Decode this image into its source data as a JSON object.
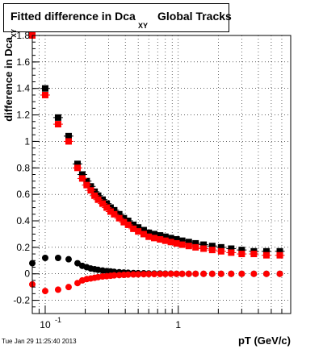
{
  "title": {
    "main": "Fitted difference in Dca",
    "subscript": "XY",
    "tail": "Global Tracks"
  },
  "timestamp": "Tue Jan 29 11:25:40 2013",
  "chart_data": {
    "type": "scatter",
    "title": "Fitted difference in Dca XY Global Tracks",
    "xlabel": "pT (GeV/c)",
    "ylabel": "difference in Dca",
    "ylabel_subscript": "XY",
    "xscale": "log",
    "xlim": [
      0.08,
      7.0
    ],
    "ylim": [
      -0.3,
      1.8
    ],
    "grid": true,
    "x_ticks": [
      {
        "value": 0.1,
        "label": "10",
        "exp": "-1"
      },
      {
        "value": 1.0,
        "label": "1",
        "exp": ""
      }
    ],
    "y_ticks": [
      -0.2,
      0,
      0.2,
      0.4,
      0.6,
      0.8,
      1,
      1.2,
      1.4,
      1.6,
      1.8
    ],
    "series": [
      {
        "color": "#000000",
        "marker": "square",
        "x": [
          0.08,
          0.1,
          0.125,
          0.15,
          0.175,
          0.19,
          0.205,
          0.22,
          0.235,
          0.25,
          0.27,
          0.29,
          0.31,
          0.33,
          0.36,
          0.39,
          0.42,
          0.46,
          0.5,
          0.55,
          0.6,
          0.66,
          0.73,
          0.8,
          0.88,
          0.97,
          1.07,
          1.2,
          1.35,
          1.55,
          1.8,
          2.1,
          2.5,
          3.0,
          3.7,
          4.6,
          5.8
        ],
        "y": [
          1.83,
          1.4,
          1.18,
          1.04,
          0.83,
          0.75,
          0.7,
          0.66,
          0.62,
          0.59,
          0.56,
          0.53,
          0.5,
          0.48,
          0.45,
          0.42,
          0.4,
          0.37,
          0.35,
          0.33,
          0.31,
          0.3,
          0.29,
          0.28,
          0.27,
          0.26,
          0.25,
          0.24,
          0.23,
          0.22,
          0.21,
          0.2,
          0.19,
          0.18,
          0.17,
          0.17,
          0.17
        ]
      },
      {
        "color": "#ff0000",
        "marker": "square",
        "x": [
          0.08,
          0.1,
          0.125,
          0.15,
          0.175,
          0.19,
          0.205,
          0.22,
          0.235,
          0.25,
          0.27,
          0.29,
          0.31,
          0.33,
          0.36,
          0.39,
          0.42,
          0.46,
          0.5,
          0.55,
          0.6,
          0.66,
          0.73,
          0.8,
          0.88,
          0.97,
          1.07,
          1.2,
          1.35,
          1.55,
          1.8,
          2.1,
          2.5,
          3.0,
          3.7,
          4.6,
          5.8
        ],
        "y": [
          1.8,
          1.35,
          1.13,
          1.0,
          0.8,
          0.72,
          0.67,
          0.63,
          0.59,
          0.56,
          0.53,
          0.5,
          0.47,
          0.45,
          0.42,
          0.39,
          0.37,
          0.34,
          0.32,
          0.3,
          0.28,
          0.27,
          0.26,
          0.25,
          0.24,
          0.23,
          0.22,
          0.21,
          0.2,
          0.19,
          0.18,
          0.17,
          0.16,
          0.15,
          0.15,
          0.14,
          0.14
        ]
      },
      {
        "color": "#000000",
        "marker": "circle",
        "x": [
          0.08,
          0.1,
          0.125,
          0.15,
          0.175,
          0.19,
          0.205,
          0.22,
          0.235,
          0.25,
          0.27,
          0.29,
          0.31,
          0.33,
          0.36,
          0.39,
          0.42,
          0.46,
          0.5,
          0.55,
          0.6,
          0.66,
          0.73,
          0.8,
          0.88,
          0.97,
          1.07,
          1.2,
          1.35,
          1.55,
          1.8,
          2.1,
          2.5,
          3.0,
          3.7,
          4.6,
          5.8
        ],
        "y": [
          0.08,
          0.12,
          0.12,
          0.11,
          0.08,
          0.06,
          0.05,
          0.04,
          0.035,
          0.03,
          0.025,
          0.02,
          0.018,
          0.015,
          0.012,
          0.01,
          0.008,
          0.006,
          0.005,
          0.004,
          0.003,
          0.002,
          0.002,
          0.001,
          0.001,
          0.0,
          0.0,
          0.0,
          0.0,
          0.0,
          0.0,
          0.0,
          0.0,
          0.0,
          0.0,
          0.0,
          0.0
        ]
      },
      {
        "color": "#ff0000",
        "marker": "circle",
        "x": [
          0.08,
          0.1,
          0.125,
          0.15,
          0.175,
          0.19,
          0.205,
          0.22,
          0.235,
          0.25,
          0.27,
          0.29,
          0.31,
          0.33,
          0.36,
          0.39,
          0.42,
          0.46,
          0.5,
          0.55,
          0.6,
          0.66,
          0.73,
          0.8,
          0.88,
          0.97,
          1.07,
          1.2,
          1.35,
          1.55,
          1.8,
          2.1,
          2.5,
          3.0,
          3.7,
          4.6,
          5.8
        ],
        "y": [
          -0.08,
          -0.13,
          -0.12,
          -0.1,
          -0.07,
          -0.05,
          -0.04,
          -0.035,
          -0.03,
          -0.025,
          -0.02,
          -0.018,
          -0.015,
          -0.012,
          -0.01,
          -0.008,
          -0.006,
          -0.005,
          -0.004,
          -0.003,
          -0.002,
          -0.002,
          -0.001,
          -0.001,
          0.0,
          0.0,
          0.0,
          0.0,
          0.0,
          0.0,
          0.0,
          0.0,
          0.0,
          0.0,
          0.0,
          0.0,
          0.0
        ]
      }
    ]
  }
}
